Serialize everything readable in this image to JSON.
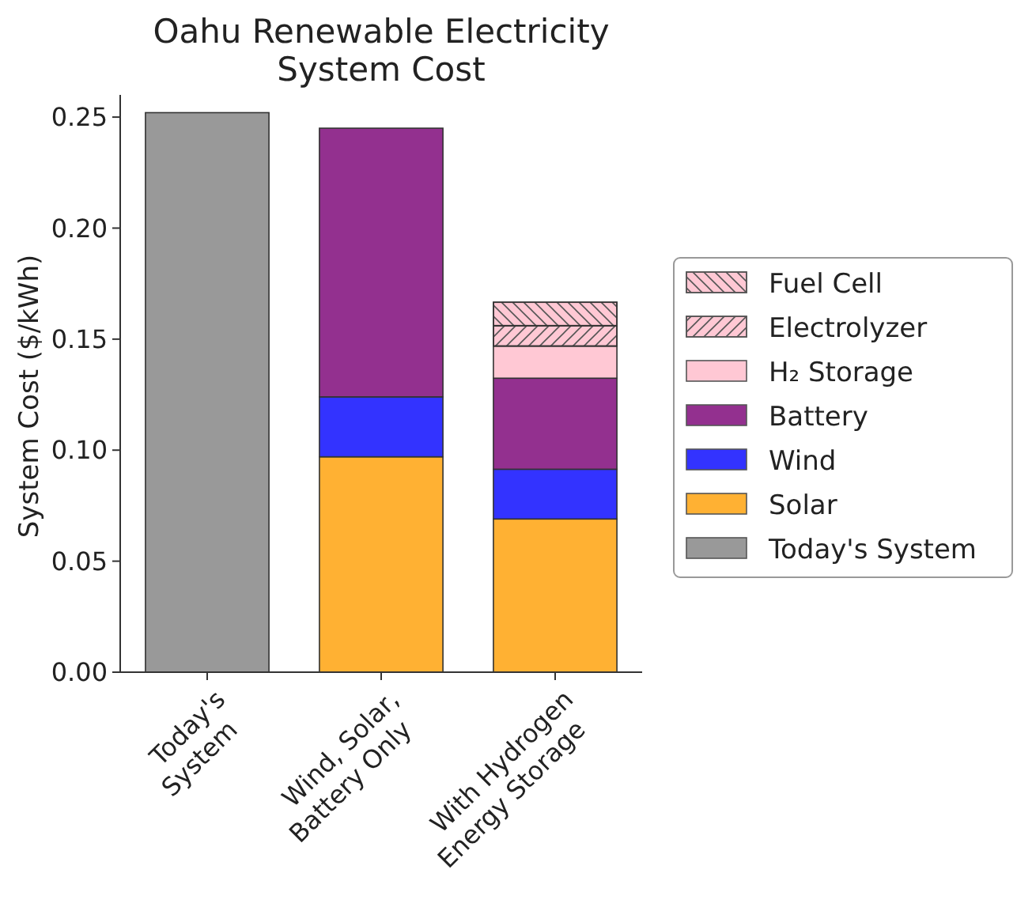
{
  "chart_data": {
    "type": "bar",
    "title": "Oahu Renewable Electricity\nSystem Cost",
    "ylabel": "System Cost ($/kWh)",
    "categories": [
      "Today's\nSystem",
      "Wind, Solar,\nBattery Only",
      "With Hydrogen\nEnergy Storage"
    ],
    "stacked": true,
    "legend": "right",
    "ylim": [
      0,
      0.26
    ],
    "yticks": [
      {
        "value": 0,
        "label": "0.00"
      },
      {
        "value": 0.05,
        "label": "0.05"
      },
      {
        "value": 0.1,
        "label": "0.10"
      },
      {
        "value": 0.15,
        "label": "0.15"
      },
      {
        "value": 0.2,
        "label": "0.20"
      },
      {
        "value": 0.25,
        "label": "0.25"
      }
    ],
    "series": [
      {
        "name": "Today's System",
        "color": "#999999",
        "values": [
          0.252,
          null,
          null
        ]
      },
      {
        "name": "Solar",
        "color": "#ffb133",
        "values": [
          null,
          0.097,
          0.069
        ]
      },
      {
        "name": "Wind",
        "color": "#3333ff",
        "values": [
          null,
          0.027,
          0.0224
        ]
      },
      {
        "name": "Battery",
        "color": "#93308f",
        "values": [
          null,
          0.121,
          0.041
        ]
      },
      {
        "name": "H₂ Storage",
        "color": "#ffc8d4",
        "values": [
          null,
          null,
          0.0145
        ]
      },
      {
        "name": "Electrolyzer",
        "color": "#ffc8d4",
        "values": [
          null,
          null,
          0.0092
        ]
      },
      {
        "name": "Fuel Cell",
        "color": "#ffc8d4",
        "values": [
          null,
          null,
          0.0105
        ]
      }
    ]
  }
}
